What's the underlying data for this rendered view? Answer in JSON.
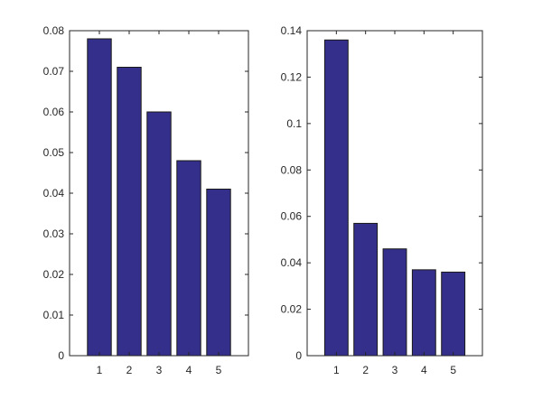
{
  "chart_data": [
    {
      "type": "bar",
      "categories": [
        "1",
        "2",
        "3",
        "4",
        "5"
      ],
      "values": [
        0.078,
        0.071,
        0.06,
        0.048,
        0.041
      ],
      "title": "",
      "xlabel": "",
      "ylabel": "",
      "ylim": [
        0,
        0.08
      ],
      "yticks": [
        "0",
        "0.01",
        "0.02",
        "0.03",
        "0.04",
        "0.05",
        "0.06",
        "0.07",
        "0.08"
      ],
      "grid": false,
      "bar_color": "#342f8a"
    },
    {
      "type": "bar",
      "categories": [
        "1",
        "2",
        "3",
        "4",
        "5"
      ],
      "values": [
        0.136,
        0.057,
        0.046,
        0.037,
        0.036
      ],
      "title": "",
      "xlabel": "",
      "ylabel": "",
      "ylim": [
        0,
        0.14
      ],
      "yticks": [
        "0",
        "0.02",
        "0.04",
        "0.06",
        "0.08",
        "0.1",
        "0.12",
        "0.14"
      ],
      "grid": false,
      "bar_color": "#342f8a"
    }
  ]
}
